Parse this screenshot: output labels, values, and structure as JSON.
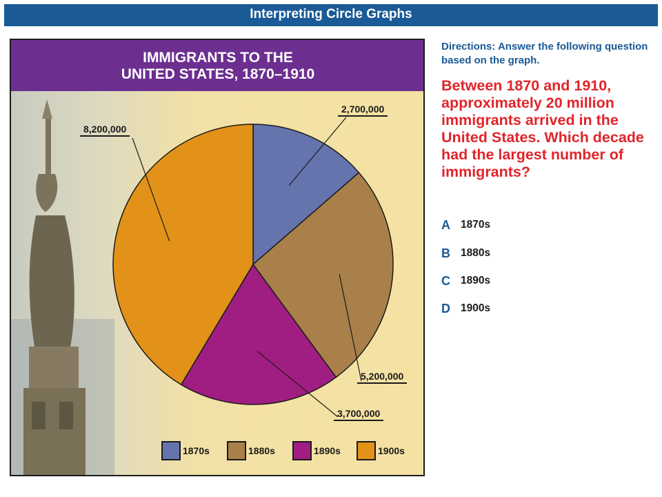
{
  "header": {
    "title": "Interpreting Circle Graphs"
  },
  "colors": {
    "header_bg": "#1a5a96",
    "chart_title_bg": "#6c2f90",
    "question_red": "#e0242a",
    "panel_bg": "#f5e2a3"
  },
  "chart_data": {
    "type": "pie",
    "title_line1": "IMMIGRANTS TO THE",
    "title_line2": "UNITED STATES, 1870–1910",
    "categories": [
      "1870s",
      "1880s",
      "1890s",
      "1900s"
    ],
    "values": [
      2700000,
      5200000,
      3700000,
      8200000
    ],
    "labels": [
      "2,700,000",
      "5,200,000",
      "3,700,000",
      "8,200,000"
    ],
    "colors": [
      "#6574ad",
      "#a9804a",
      "#a01e81",
      "#e39219"
    ],
    "legend_position": "bottom"
  },
  "directions": "Directions: Answer the following question based on the graph.",
  "question": "Between 1870 and 1910, approximately 20 million immigrants arrived in the United States. Which decade had the largest number of immigrants?",
  "choices": [
    {
      "letter": "A",
      "text": "1870s"
    },
    {
      "letter": "B",
      "text": "1880s"
    },
    {
      "letter": "C",
      "text": "1890s"
    },
    {
      "letter": "D",
      "text": "1900s"
    }
  ]
}
